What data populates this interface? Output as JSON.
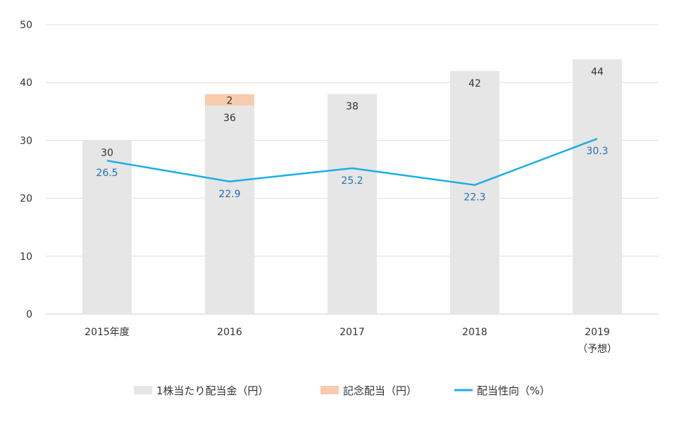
{
  "chart_data": {
    "type": "bar",
    "categories": [
      "2015年度",
      "2016",
      "2017",
      "2018",
      "2019"
    ],
    "category_sublabels": [
      "",
      "",
      "",
      "",
      "（予想）"
    ],
    "ylim": [
      0,
      50
    ],
    "yticks": [
      0,
      10,
      20,
      30,
      40,
      50
    ],
    "grid": true,
    "legend_position": "bottom",
    "series": [
      {
        "name": "1株当たり配当金（円）",
        "kind": "bar",
        "stack": "main",
        "color": "#e6e6e6",
        "values": [
          30,
          36,
          38,
          42,
          44
        ],
        "labels": [
          "30",
          "36",
          "38",
          "42",
          "44"
        ]
      },
      {
        "name": "記念配当（円）",
        "kind": "bar",
        "stack": "main",
        "color": "#f8cbad",
        "values": [
          0,
          2,
          0,
          0,
          0
        ],
        "labels": [
          "",
          "2",
          "",
          "",
          ""
        ]
      },
      {
        "name": "配当性向（%）",
        "kind": "line",
        "color": "#1aaee6",
        "values": [
          26.5,
          22.9,
          25.2,
          22.3,
          30.3
        ],
        "labels": [
          "26.5",
          "22.9",
          "25.2",
          "22.3",
          "30.3"
        ]
      }
    ]
  }
}
